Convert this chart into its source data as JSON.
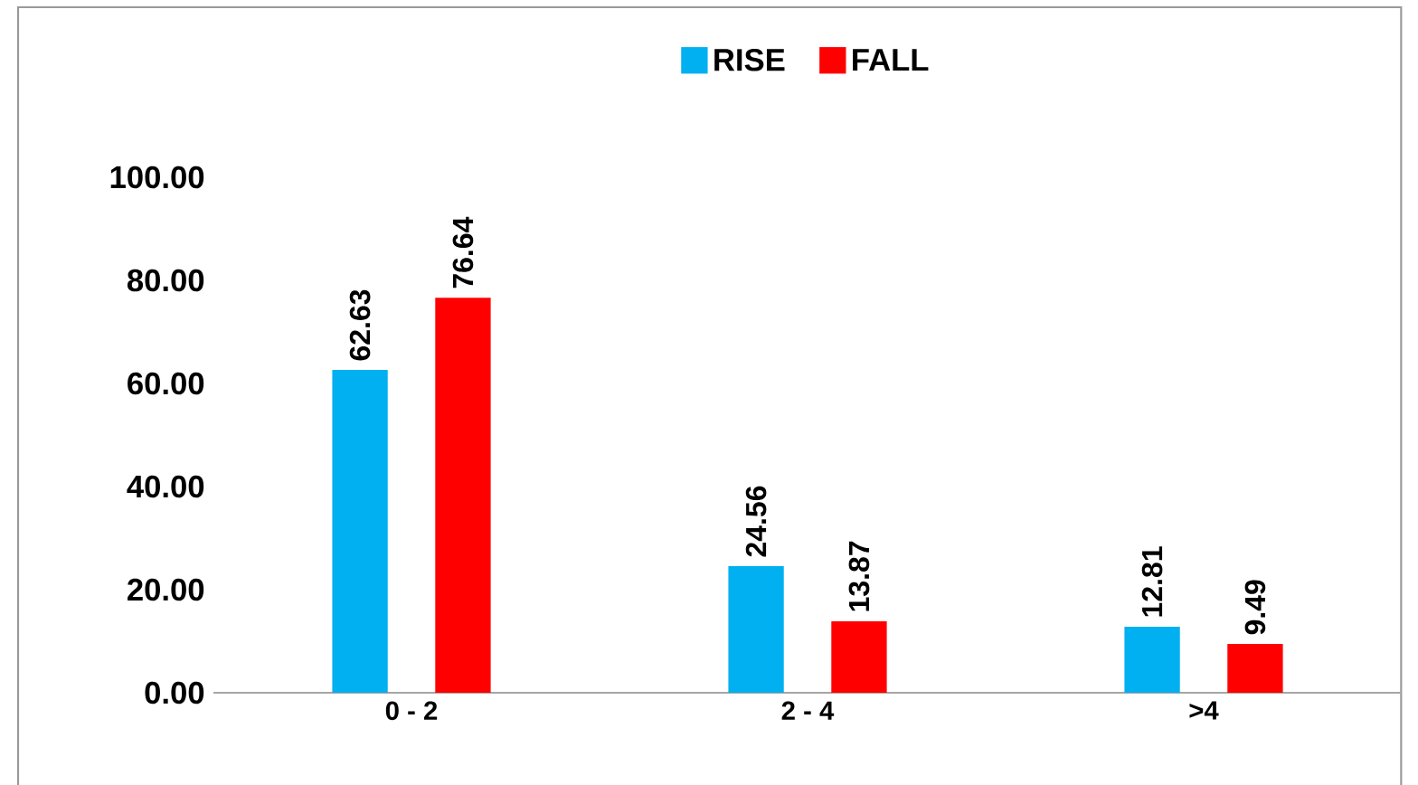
{
  "chart_data": {
    "type": "bar",
    "categories": [
      "0 - 2",
      "2 - 4",
      ">4"
    ],
    "series": [
      {
        "name": "RISE",
        "color": "#00b0f0",
        "values": [
          62.63,
          24.56,
          12.81
        ]
      },
      {
        "name": "FALL",
        "color": "#ff0000",
        "values": [
          76.64,
          13.87,
          9.49
        ]
      }
    ],
    "ylim": [
      0,
      100
    ],
    "yticks": [
      {
        "value": 0,
        "label": "0.00"
      },
      {
        "value": 20,
        "label": "20.00"
      },
      {
        "value": 40,
        "label": "40.00"
      },
      {
        "value": 60,
        "label": "60.00"
      },
      {
        "value": 80,
        "label": "80.00"
      },
      {
        "value": 100,
        "label": "100.00"
      }
    ],
    "data_labels": true,
    "legend": "top",
    "grid": false
  }
}
